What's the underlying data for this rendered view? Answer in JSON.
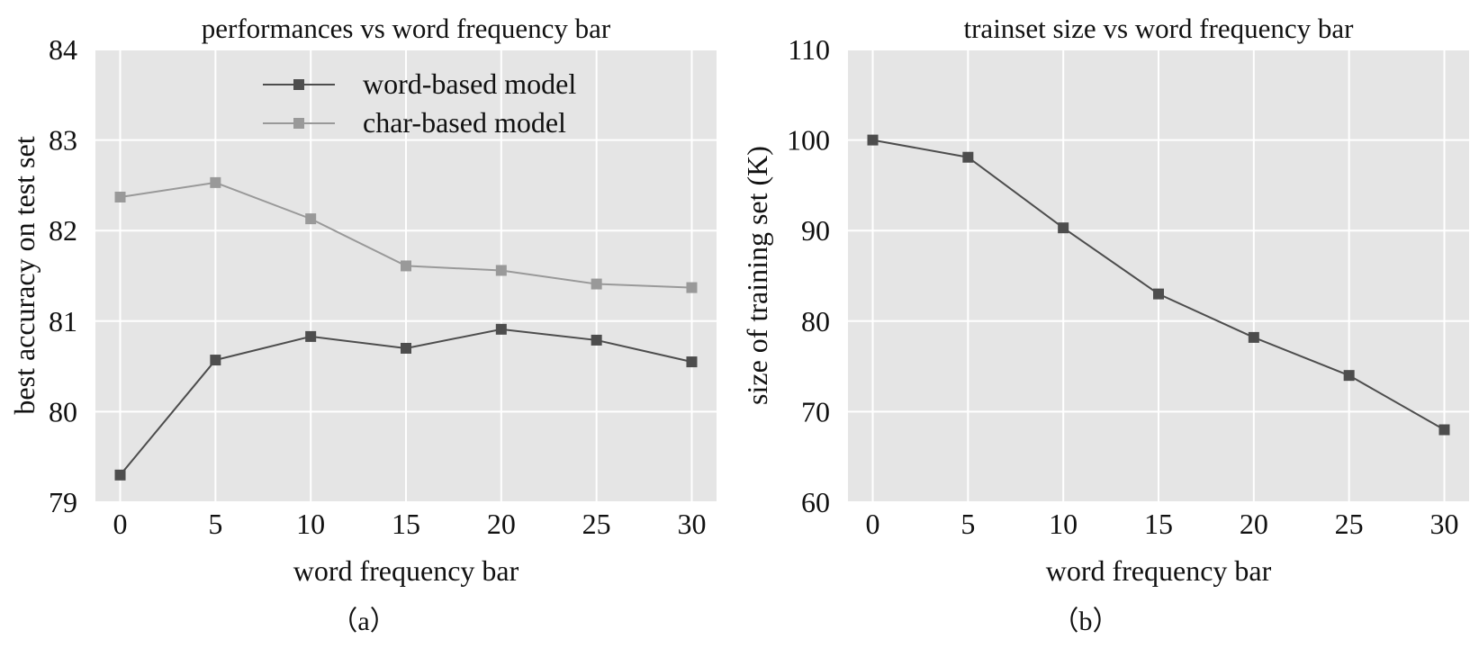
{
  "chart_data": [
    {
      "type": "line",
      "title": "performances vs word frequency bar",
      "xlabel": "word frequency bar",
      "ylabel": "best accuracy on test set",
      "caption": "（a）",
      "x": [
        0,
        5,
        10,
        15,
        20,
        25,
        30
      ],
      "xticks": [
        0,
        5,
        10,
        15,
        20,
        25,
        30
      ],
      "xlim": [
        -1.3,
        31.3
      ],
      "ylim": [
        79,
        84
      ],
      "yticks": [
        79,
        80,
        81,
        82,
        83,
        84
      ],
      "grid": true,
      "legend_position": "top-center",
      "series": [
        {
          "name": "word-based model",
          "color": "#4d4d4d",
          "marker": "square",
          "values": [
            79.3,
            80.57,
            80.83,
            80.7,
            80.91,
            80.79,
            80.55
          ]
        },
        {
          "name": "char-based model",
          "color": "#999999",
          "marker": "square",
          "values": [
            82.37,
            82.53,
            82.13,
            81.61,
            81.56,
            81.41,
            81.37
          ]
        }
      ]
    },
    {
      "type": "line",
      "title": "trainset size vs word frequency bar",
      "xlabel": "word frequency bar",
      "ylabel": "size of training set (K)",
      "caption": "（b）",
      "x": [
        0,
        5,
        10,
        15,
        20,
        25,
        30
      ],
      "xticks": [
        0,
        5,
        10,
        15,
        20,
        25,
        30
      ],
      "xlim": [
        -1.3,
        31.3
      ],
      "ylim": [
        60,
        110
      ],
      "yticks": [
        60,
        70,
        80,
        90,
        100,
        110
      ],
      "grid": true,
      "series": [
        {
          "color": "#4d4d4d",
          "marker": "square",
          "values": [
            100,
            98.1,
            90.3,
            83.0,
            78.2,
            74.0,
            68.0
          ]
        }
      ]
    }
  ]
}
